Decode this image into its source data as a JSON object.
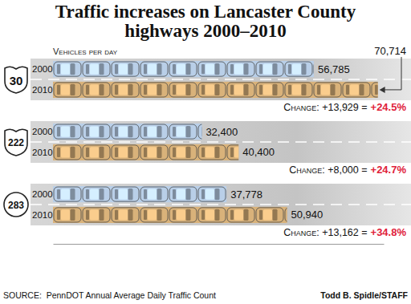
{
  "chart_data": {
    "type": "bar",
    "orientation": "horizontal",
    "title": "Traffic increases on Lancaster County highways 2000–2010",
    "xlabel": "Vehicles per day",
    "categories": [
      "30",
      "222",
      "283"
    ],
    "series": [
      {
        "name": "2000",
        "color": "#b9cfe8",
        "values": [
          56785,
          32400,
          37778
        ],
        "value_labels": [
          "56,785",
          "32,400",
          "37,778"
        ]
      },
      {
        "name": "2010",
        "color": "#d9b27a",
        "values": [
          70714,
          40400,
          50940
        ],
        "value_labels": [
          "70,714",
          "40,400",
          "50,940"
        ]
      }
    ],
    "xlim": [
      0,
      72000
    ],
    "xticks": [],
    "tick_labels": false,
    "data_labels": true,
    "annotations": [
      {
        "label": "Change: +13,929 =",
        "percent": "+24.5%"
      },
      {
        "label": "Change: +8,000 =",
        "percent": "+24.7%"
      },
      {
        "label": "Change: +13,162 =",
        "percent": "+34.8%"
      }
    ],
    "source": "SOURCE:  PennDOT Annual Average Daily Traffic Count",
    "credit": "Todd B. Spidle/STAFF"
  }
}
